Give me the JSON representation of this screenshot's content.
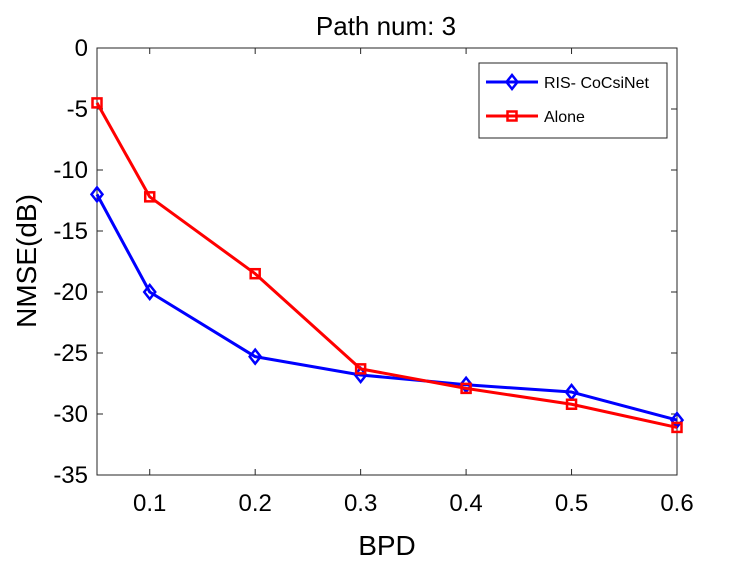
{
  "chart_data": {
    "type": "line",
    "title": "Path num: 3",
    "xlabel": "BPD",
    "ylabel": "NMSE(dB)",
    "xlim": [
      0.05,
      0.6
    ],
    "ylim": [
      -35,
      0
    ],
    "xticks": [
      0.1,
      0.2,
      0.3,
      0.4,
      0.5,
      0.6
    ],
    "xtick_labels": [
      "0.1",
      "0.2",
      "0.3",
      "0.4",
      "0.5",
      "0.6"
    ],
    "yticks": [
      0,
      -5,
      -10,
      -15,
      -20,
      -25,
      -30,
      -35
    ],
    "ytick_labels": [
      "0",
      "-5",
      "-10",
      "-15",
      "-20",
      "-25",
      "-30",
      "-35"
    ],
    "grid": false,
    "legend_position": "top-right",
    "series": [
      {
        "name": "RIS- CoCsiNet",
        "color": "#0000ff",
        "marker": "diamond",
        "x": [
          0.05,
          0.1,
          0.2,
          0.3,
          0.4,
          0.5,
          0.6
        ],
        "y": [
          -12.0,
          -20.0,
          -25.3,
          -26.8,
          -27.6,
          -28.2,
          -30.5
        ]
      },
      {
        "name": "Alone",
        "color": "#ff0000",
        "marker": "square",
        "x": [
          0.05,
          0.1,
          0.2,
          0.3,
          0.4,
          0.5,
          0.6
        ],
        "y": [
          -4.5,
          -12.2,
          -18.5,
          -26.3,
          -27.9,
          -29.2,
          -31.1
        ]
      }
    ]
  }
}
